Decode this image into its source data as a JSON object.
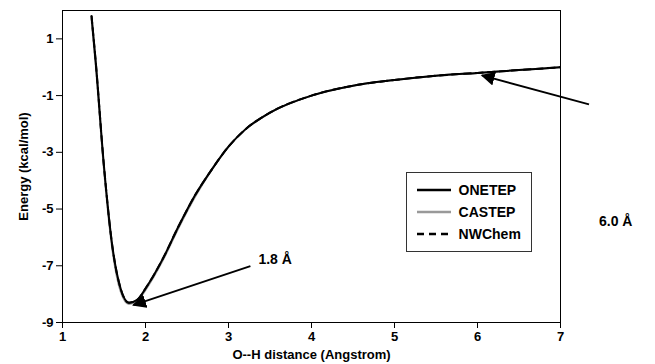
{
  "chart_data": {
    "type": "line",
    "x_label": "O--H distance (Angstrom)",
    "y_label": "Energy (kcal/mol)",
    "x": [
      1.35,
      1.4,
      1.5,
      1.6,
      1.7,
      1.8,
      1.9,
      2.0,
      2.2,
      2.4,
      2.6,
      2.8,
      3.0,
      3.2,
      3.5,
      4.0,
      4.5,
      5.0,
      5.5,
      6.0,
      6.5,
      7.0
    ],
    "series": [
      {
        "name": "ONETEP",
        "color": "#000000",
        "line_style": "solid",
        "values": [
          1.8,
          0.2,
          -3.5,
          -6.3,
          -7.8,
          -8.3,
          -8.2,
          -7.8,
          -6.8,
          -5.6,
          -4.5,
          -3.6,
          -2.8,
          -2.2,
          -1.6,
          -1.0,
          -0.65,
          -0.45,
          -0.3,
          -0.2,
          -0.1,
          0.0
        ]
      },
      {
        "name": "CASTEP",
        "color": "#999999",
        "line_style": "solid",
        "values": [
          1.7,
          0.1,
          -3.6,
          -6.4,
          -7.9,
          -8.35,
          -8.25,
          -7.85,
          -6.85,
          -5.65,
          -4.55,
          -3.6,
          -2.8,
          -2.2,
          -1.6,
          -1.0,
          -0.65,
          -0.45,
          -0.3,
          -0.2,
          -0.1,
          0.0
        ]
      },
      {
        "name": "NWChem",
        "color": "#000000",
        "line_style": "dashed",
        "values": [
          1.8,
          0.2,
          -3.5,
          -6.3,
          -7.8,
          -8.3,
          -8.2,
          -7.8,
          -6.8,
          -5.6,
          -4.5,
          -3.6,
          -2.8,
          -2.2,
          -1.6,
          -1.0,
          -0.65,
          -0.45,
          -0.3,
          -0.2,
          -0.1,
          0.0
        ]
      }
    ],
    "xlim": [
      1,
      7
    ],
    "ylim": [
      -9,
      2
    ],
    "xticks": [
      1,
      2,
      3,
      4,
      5,
      6,
      7
    ],
    "yticks": [
      -9,
      -7,
      -5,
      -3,
      -1,
      1
    ],
    "grid": false,
    "legend": "right",
    "annotations": [
      {
        "text": "1.8 Å",
        "x": 1.8
      },
      {
        "text": "6.0 Å",
        "x": 6.0
      }
    ]
  }
}
